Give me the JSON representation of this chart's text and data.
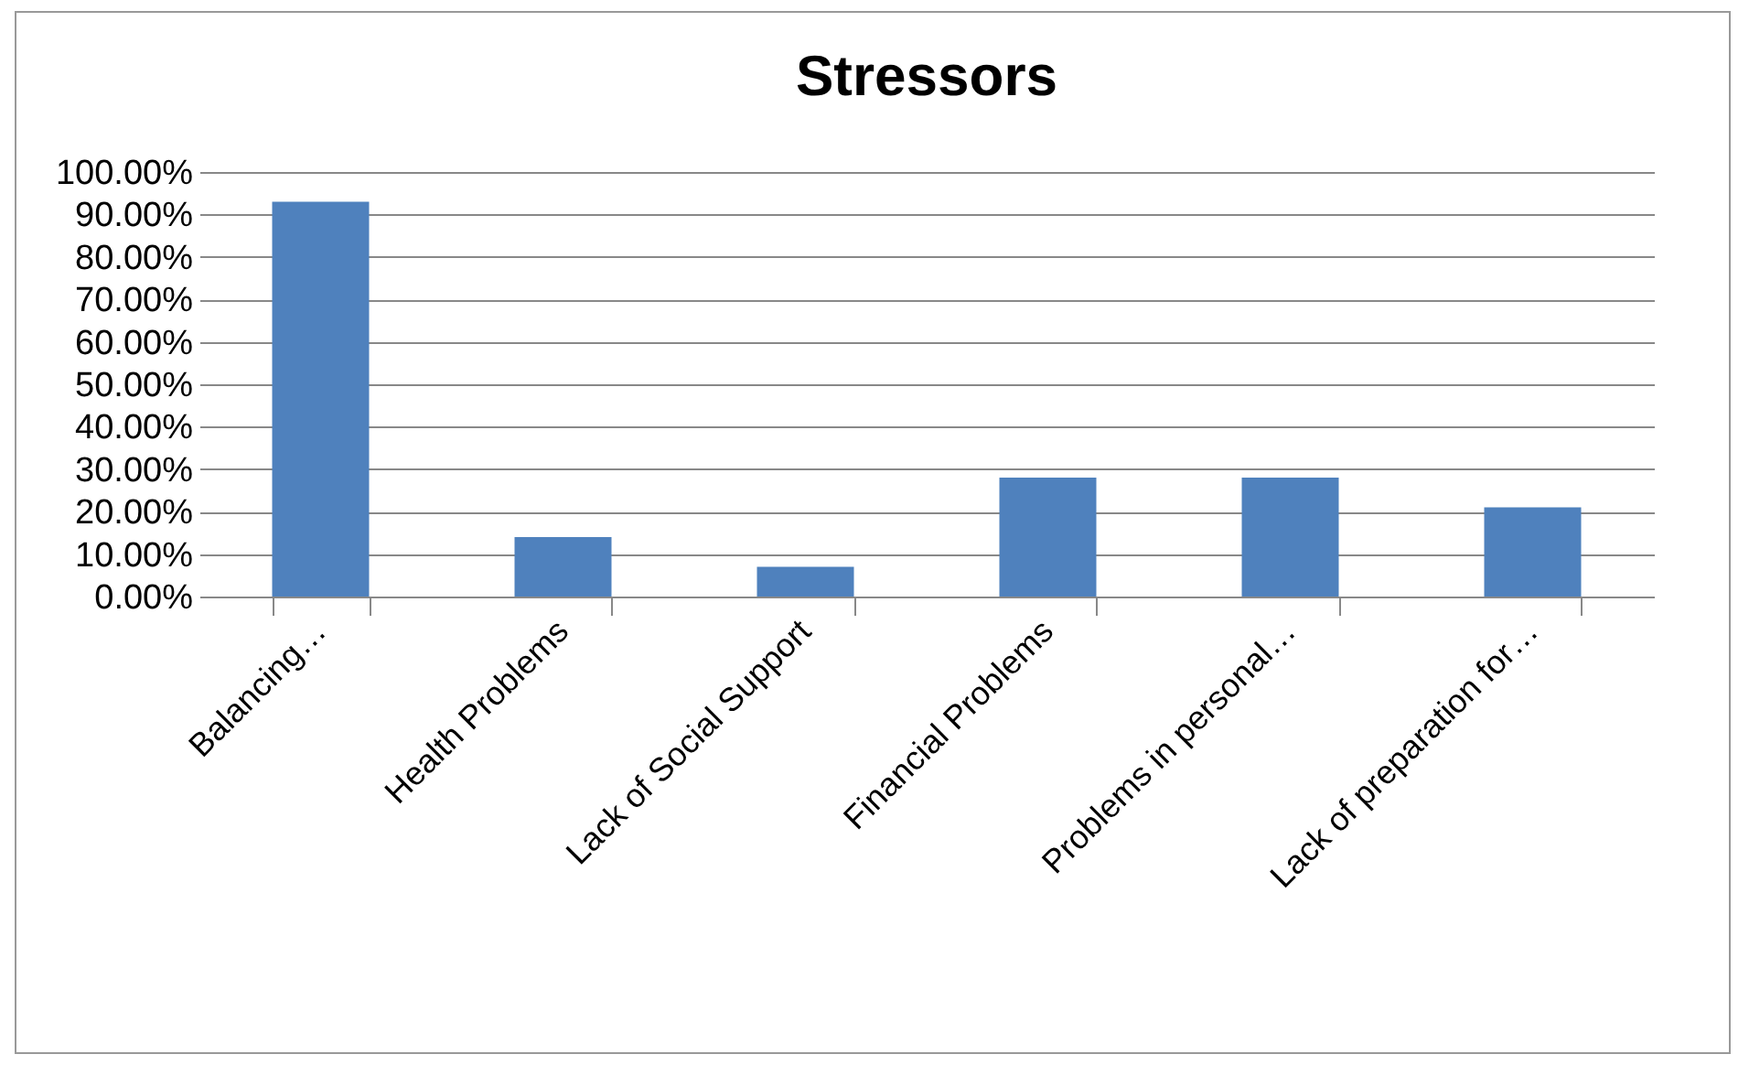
{
  "chart_data": {
    "type": "bar",
    "title": "Stressors",
    "categories": [
      "Balancing…",
      "Health Problems",
      "Lack of Social Support",
      "Financial Problems",
      "Problems in personal…",
      "Lack of preparation for…"
    ],
    "values": [
      93,
      14,
      7,
      28,
      28,
      21
    ],
    "color": "#4f81bd",
    "ylim": [
      0,
      100
    ],
    "yticks": [
      {
        "value": 0,
        "label": "0.00%"
      },
      {
        "value": 10,
        "label": "10.00%"
      },
      {
        "value": 20,
        "label": "20.00%"
      },
      {
        "value": 30,
        "label": "30.00%"
      },
      {
        "value": 40,
        "label": "40.00%"
      },
      {
        "value": 50,
        "label": "50.00%"
      },
      {
        "value": 60,
        "label": "60.00%"
      },
      {
        "value": 70,
        "label": "70.00%"
      },
      {
        "value": 80,
        "label": "80.00%"
      },
      {
        "value": 90,
        "label": "90.00%"
      },
      {
        "value": 100,
        "label": "100.00%"
      }
    ],
    "grid": "y"
  }
}
